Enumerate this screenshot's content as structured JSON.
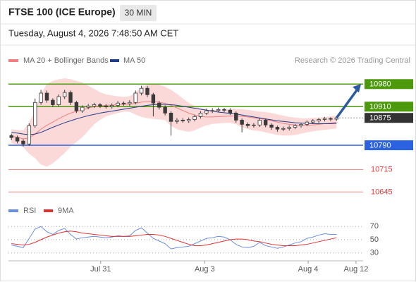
{
  "chart_data": [
    {
      "type": "candlestick",
      "title": "FTSE 100 (ICE Europe)",
      "timeframe": "30 MIN",
      "subtitle": "Tuesday, August 4, 2026 7:48:50 AM CET",
      "source": "Research © 2026 Trading Central",
      "x": [
        0,
        1,
        2,
        3,
        4,
        5,
        6,
        7,
        8,
        9,
        10,
        11,
        12,
        13,
        14,
        15,
        16,
        17,
        18,
        19,
        20,
        21,
        22,
        23,
        24,
        25,
        26,
        27,
        28,
        29,
        30,
        31,
        32,
        33,
        34,
        35,
        36,
        37,
        38,
        39,
        40,
        41,
        42,
        43,
        44,
        45,
        46,
        47,
        48,
        49,
        50,
        51,
        52,
        53,
        54,
        55
      ],
      "xlim": [
        -0.5,
        59.5
      ],
      "ylim": [
        10615,
        11020
      ],
      "up_color": "#ffffff",
      "down_color": "#3a3a3a",
      "wick_color": "#3a3a3a",
      "open": [
        10820,
        10814,
        10803,
        10794,
        10851,
        10923,
        10952,
        10930,
        10916,
        10941,
        10954,
        10923,
        10897,
        10908,
        10912,
        10916,
        10912,
        10910,
        10914,
        10921,
        10919,
        10923,
        10952,
        10967,
        10947,
        10921,
        10908,
        10890,
        10864,
        10868,
        10866,
        10870,
        10879,
        10890,
        10897,
        10898,
        10901,
        10899,
        10890,
        10868,
        10855,
        10851,
        10853,
        10868,
        10853,
        10846,
        10840,
        10842,
        10846,
        10851,
        10855,
        10862,
        10866,
        10870,
        10873,
        10871
      ],
      "high": [
        10826,
        10820,
        10809,
        10858,
        10935,
        10962,
        10960,
        10936,
        10948,
        10962,
        10960,
        10928,
        10914,
        10918,
        10922,
        10921,
        10918,
        10920,
        10927,
        10926,
        10930,
        10960,
        10975,
        10974,
        10953,
        10927,
        10914,
        10896,
        10874,
        10874,
        10876,
        10885,
        10896,
        10904,
        10905,
        10907,
        10906,
        10905,
        10895,
        10873,
        10861,
        10859,
        10874,
        10873,
        10858,
        10851,
        10848,
        10851,
        10856,
        10860,
        10867,
        10871,
        10875,
        10878,
        10877,
        10880
      ],
      "low": [
        10806,
        10796,
        10786,
        10788,
        10844,
        10916,
        10922,
        10909,
        10910,
        10934,
        10915,
        10890,
        10891,
        10902,
        10906,
        10906,
        10904,
        10904,
        10908,
        10913,
        10912,
        10917,
        10945,
        10940,
        10880,
        10901,
        10883,
        10820,
        10857,
        10860,
        10860,
        10864,
        10873,
        10884,
        10890,
        10892,
        10893,
        10884,
        10860,
        10830,
        10844,
        10845,
        10847,
        10846,
        10838,
        10832,
        10834,
        10836,
        10840,
        10845,
        10849,
        10856,
        10860,
        10864,
        10865,
        10866
      ],
      "close": [
        10814,
        10803,
        10794,
        10851,
        10923,
        10952,
        10930,
        10916,
        10941,
        10954,
        10923,
        10897,
        10908,
        10912,
        10916,
        10912,
        10910,
        10914,
        10921,
        10919,
        10923,
        10952,
        10967,
        10947,
        10921,
        10908,
        10890,
        10864,
        10868,
        10866,
        10870,
        10879,
        10890,
        10897,
        10898,
        10901,
        10899,
        10890,
        10868,
        10855,
        10851,
        10853,
        10868,
        10853,
        10846,
        10840,
        10842,
        10846,
        10851,
        10855,
        10862,
        10866,
        10870,
        10873,
        10871,
        10875
      ],
      "series": [
        {
          "name": "MA 20 + Bollinger Bands",
          "color": "#f08080",
          "band_color": "#fcd9d9",
          "values": [
            10818,
            10815,
            10810,
            10812,
            10825,
            10840,
            10852,
            10862,
            10872,
            10882,
            10890,
            10895,
            10900,
            10905,
            10910,
            10912,
            10914,
            10915,
            10916,
            10917,
            10918,
            10920,
            10924,
            10926,
            10926,
            10924,
            10920,
            10914,
            10906,
            10898,
            10890,
            10884,
            10880,
            10878,
            10878,
            10879,
            10880,
            10881,
            10881,
            10880,
            10878,
            10875,
            10873,
            10870,
            10866,
            10862,
            10858,
            10855,
            10853,
            10852,
            10852,
            10853,
            10855,
            10857,
            10859,
            10861
          ],
          "upper": [
            10840,
            10838,
            10836,
            10860,
            10900,
            10950,
            10980,
            10990,
            10995,
            10998,
            10995,
            10990,
            10985,
            10975,
            10965,
            10955,
            10948,
            10945,
            10942,
            10940,
            10942,
            10955,
            10970,
            10978,
            10980,
            10978,
            10972,
            10962,
            10950,
            10935,
            10922,
            10912,
            10905,
            10902,
            10900,
            10900,
            10901,
            10902,
            10903,
            10902,
            10900,
            10897,
            10895,
            10893,
            10890,
            10886,
            10882,
            10878,
            10876,
            10874,
            10874,
            10875,
            10876,
            10878,
            10880,
            10882
          ],
          "lower": [
            10796,
            10792,
            10784,
            10764,
            10750,
            10730,
            10724,
            10734,
            10749,
            10766,
            10785,
            10800,
            10815,
            10835,
            10855,
            10869,
            10880,
            10885,
            10890,
            10894,
            10894,
            10885,
            10878,
            10874,
            10872,
            10870,
            10868,
            10850,
            10840,
            10835,
            10832,
            10836,
            10845,
            10852,
            10856,
            10858,
            10859,
            10860,
            10855,
            10846,
            10840,
            10836,
            10834,
            10830,
            10826,
            10822,
            10820,
            10820,
            10822,
            10826,
            10830,
            10833,
            10836,
            10838,
            10840,
            10842
          ]
        },
        {
          "name": "MA 50",
          "color": "#1f3c88",
          "values": [
            10830,
            10828,
            10825,
            10823,
            10825,
            10830,
            10838,
            10846,
            10853,
            10860,
            10866,
            10872,
            10877,
            10882,
            10886,
            10890,
            10893,
            10896,
            10899,
            10902,
            10905,
            10908,
            10911,
            10914,
            10916,
            10917,
            10917,
            10916,
            10914,
            10911,
            10908,
            10905,
            10902,
            10899,
            10896,
            10893,
            10891,
            10889,
            10887,
            10884,
            10881,
            10878,
            10875,
            10872,
            10869,
            10866,
            10864,
            10862,
            10860,
            10859,
            10858,
            10857,
            10857,
            10857,
            10857,
            10858
          ]
        }
      ],
      "levels": [
        {
          "value": 10980,
          "color": "#4c9a0c",
          "style": "box"
        },
        {
          "value": 10910,
          "color": "#4c9a0c",
          "style": "box"
        },
        {
          "value": 10875,
          "color": "#333333",
          "style": "last"
        },
        {
          "value": 10790,
          "color": "#2a62e0",
          "style": "box"
        },
        {
          "value": 10715,
          "color": "#e03a3a",
          "style": "text"
        },
        {
          "value": 10645,
          "color": "#e03a3a",
          "style": "text"
        }
      ],
      "arrow_color": "#2c5aa0"
    },
    {
      "type": "line",
      "ylim": [
        18,
        82
      ],
      "yticks": [
        30,
        50,
        70
      ],
      "grid": true,
      "xlim": [
        -0.5,
        59.5
      ],
      "xticks": [
        {
          "value": 15.1,
          "label": "Jul 31"
        },
        {
          "value": 32.7,
          "label": "Aug 3"
        },
        {
          "value": 50.2,
          "label": "Aug 4"
        },
        {
          "value": 58.3,
          "label": "Aug 12"
        }
      ],
      "series": [
        {
          "name": "RSI",
          "color": "#6b8de0",
          "values": [
            42,
            40,
            38,
            52,
            66,
            70,
            62,
            58,
            64,
            67,
            58,
            51,
            53,
            54,
            55,
            54,
            53,
            54,
            56,
            55,
            56,
            64,
            68,
            60,
            52,
            48,
            44,
            36,
            38,
            39,
            40,
            44,
            48,
            52,
            53,
            55,
            54,
            50,
            43,
            39,
            38,
            40,
            46,
            41,
            39,
            37,
            39,
            42,
            45,
            47,
            52,
            54,
            57,
            59,
            58,
            58
          ]
        },
        {
          "name": "9MA",
          "color": "#e03030",
          "values": [
            44,
            43,
            42,
            43,
            46,
            50,
            54,
            57,
            60,
            62,
            63,
            62,
            60,
            59,
            58,
            57,
            56,
            55,
            55,
            55,
            55,
            56,
            57,
            58,
            58,
            57,
            55,
            52,
            49,
            46,
            43,
            41,
            41,
            42,
            44,
            46,
            48,
            50,
            51,
            51,
            50,
            48,
            47,
            45,
            43,
            42,
            41,
            41,
            41,
            42,
            43,
            45,
            47,
            49,
            51,
            53
          ]
        }
      ]
    }
  ]
}
